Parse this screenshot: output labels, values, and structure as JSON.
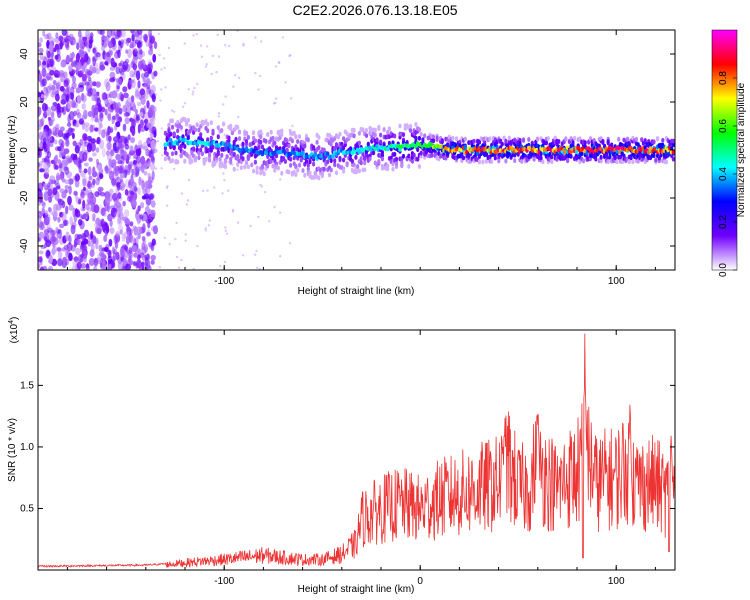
{
  "figure": {
    "title": "C2E2.2026.076.13.18.E05"
  },
  "chart_data": [
    {
      "type": "heatmap",
      "name": "spectrogram",
      "xlabel": "Height of straight line (km)",
      "ylabel": "Frequency (Hz)",
      "xlim": [
        -195,
        130
      ],
      "ylim": [
        -50,
        50
      ],
      "x_ticks": [
        -100,
        100
      ],
      "y_ticks": [
        -40,
        -20,
        0,
        20,
        40
      ],
      "colorbar": {
        "label": "Normalized spectral amplitude",
        "range": [
          0,
          1
        ],
        "ticks": [
          "0.0",
          "0.2",
          "0.4",
          "0.6",
          "0.8"
        ],
        "colors": [
          "#ffffff",
          "#7000ff",
          "#0000ff",
          "#00ffff",
          "#00ff00",
          "#ffff00",
          "#ff0000",
          "#ff00ff"
        ]
      },
      "noise_region_x": [
        -195,
        -135
      ],
      "ridge": {
        "x": [
          -130,
          -120,
          -110,
          -100,
          -90,
          -80,
          -70,
          -60,
          -50,
          -40,
          -30,
          -20,
          -10,
          0,
          10,
          20,
          40,
          60,
          80,
          100,
          120,
          130
        ],
        "freq": [
          3,
          4,
          3,
          2,
          0,
          -1,
          -1,
          -2,
          -3,
          -1,
          0,
          1,
          1,
          2,
          1,
          0,
          0,
          0,
          0,
          0,
          0,
          0
        ],
        "amplitude": [
          0.45,
          0.42,
          0.45,
          0.4,
          0.38,
          0.38,
          0.38,
          0.4,
          0.4,
          0.42,
          0.45,
          0.48,
          0.55,
          0.6,
          0.75,
          0.85,
          0.88,
          0.88,
          0.88,
          0.9,
          0.9,
          0.85
        ]
      }
    },
    {
      "type": "line",
      "name": "snr",
      "xlabel": "Height of straight line (km)",
      "ylabel": "SNR (10 * v/v)",
      "y_multiplier_label": "(x10",
      "y_multiplier_exp": "4",
      "y_multiplier_close": ")",
      "xlim": [
        -195,
        130
      ],
      "ylim": [
        0,
        1.95
      ],
      "x_ticks": [
        "-100",
        "0",
        "100"
      ],
      "y_ticks": [
        "0.5",
        "1.0",
        "1.5"
      ],
      "line_color": "#ee3333",
      "envelope": {
        "x": [
          -195,
          -140,
          -130,
          -120,
          -100,
          -90,
          -80,
          -70,
          -60,
          -50,
          -40,
          -33,
          -30,
          -25,
          -20,
          -10,
          0,
          10,
          20,
          30,
          40,
          45,
          50,
          55,
          60,
          65,
          70,
          75,
          80,
          85,
          90,
          95,
          100,
          105,
          110,
          120,
          125,
          130
        ],
        "y": [
          0.03,
          0.04,
          0.05,
          0.07,
          0.1,
          0.12,
          0.14,
          0.12,
          0.1,
          0.1,
          0.15,
          0.25,
          0.5,
          0.55,
          0.6,
          0.65,
          0.6,
          0.7,
          0.75,
          0.8,
          0.85,
          1.05,
          0.8,
          0.8,
          1.05,
          0.9,
          0.8,
          0.9,
          0.95,
          1.2,
          0.85,
          0.9,
          0.9,
          1.05,
          0.85,
          0.85,
          0.75,
          0.8
        ]
      },
      "peaks": [
        {
          "x": 43,
          "y": 1.25
        },
        {
          "x": 60,
          "y": 1.48
        },
        {
          "x": 84,
          "y": 1.95
        },
        {
          "x": 107,
          "y": 1.5
        },
        {
          "x": 128,
          "y": 1.2
        }
      ],
      "dips": [
        {
          "x": 83,
          "y": 0.1
        },
        {
          "x": 127,
          "y": 0.15
        }
      ]
    }
  ]
}
